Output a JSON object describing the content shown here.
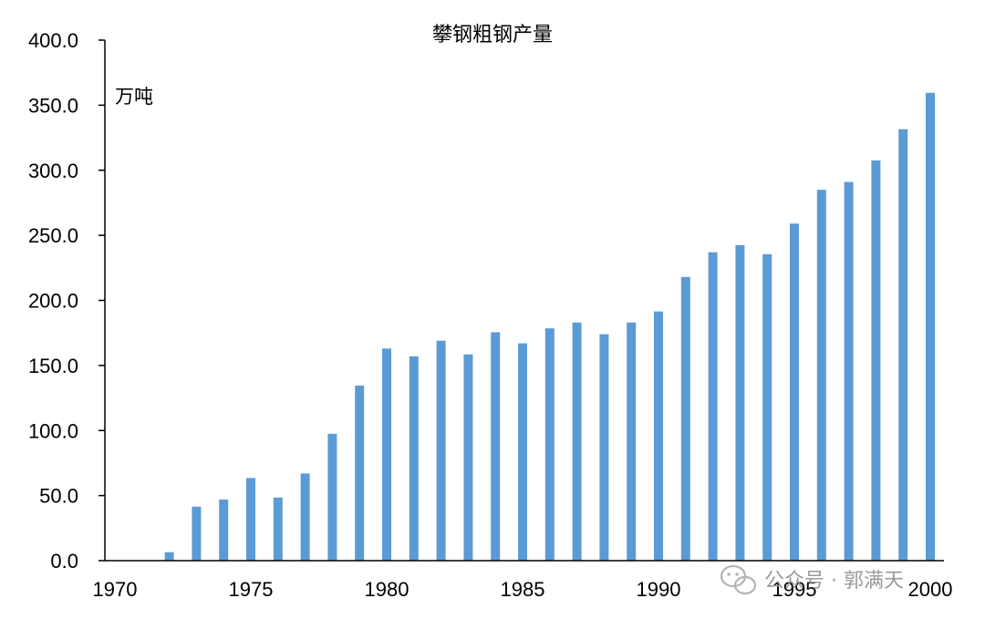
{
  "chart_data": {
    "type": "bar",
    "title": "攀钢粗钢产量",
    "unit_label": "万吨",
    "x": [
      1970,
      1971,
      1972,
      1973,
      1974,
      1975,
      1976,
      1977,
      1978,
      1979,
      1980,
      1981,
      1982,
      1983,
      1984,
      1985,
      1986,
      1987,
      1988,
      1989,
      1990,
      1991,
      1992,
      1993,
      1994,
      1995,
      1996,
      1997,
      1998,
      1999,
      2000
    ],
    "values": [
      0,
      0,
      6.5,
      41.5,
      47,
      63.5,
      48.5,
      67,
      97.5,
      134.5,
      163,
      157,
      169,
      158.5,
      175.5,
      167,
      178.5,
      183,
      174,
      183,
      191.5,
      218,
      237,
      242.5,
      235.5,
      259,
      285,
      291,
      307.5,
      331.5,
      359.5
    ],
    "ylim": [
      0,
      400
    ],
    "y_ticks": [
      "0.0",
      "50.0",
      "100.0",
      "150.0",
      "200.0",
      "250.0",
      "300.0",
      "350.0",
      "400.0"
    ],
    "x_ticks": [
      "1970",
      "1975",
      "1980",
      "1985",
      "1990",
      "1995",
      "2000"
    ],
    "bar_color": "#5b9bd5",
    "grid": false,
    "legend": "none"
  },
  "watermark": {
    "text": "公众号 · 郭满天",
    "icon": "wechat-icon"
  }
}
